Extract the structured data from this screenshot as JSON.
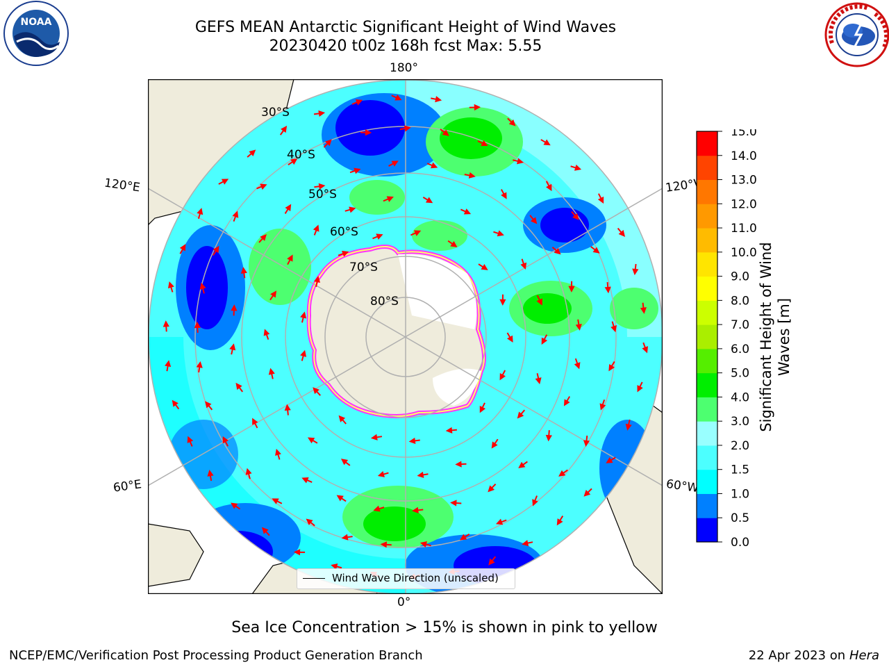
{
  "title": {
    "line1": "GEFS MEAN Antarctic Significant Height of Wind Waves",
    "line2": "20230420 t00z 168h fcst   Max: 5.55"
  },
  "logos": {
    "noaa_text": "NOAA",
    "nws_text": "NATIONAL WEATHER SERVICE"
  },
  "map": {
    "projection": "south-polar-stereographic",
    "longitude_labels": {
      "top": "180°",
      "bottom": "0°",
      "upper_left": "120°E",
      "upper_right": "120°W",
      "lower_left": "60°E",
      "lower_right": "60°W"
    },
    "latitude_labels": [
      "30°S",
      "40°S",
      "50°S",
      "60°S",
      "70°S",
      "80°S"
    ],
    "land_color": "#efecdc",
    "ocean_colors": [
      "#0000ff",
      "#0080ff",
      "#00ffff",
      "#4cffff",
      "#99ffff",
      "#4dff70",
      "#00ee00"
    ],
    "sea_ice_colors": [
      "#ff33ff",
      "#ffff66"
    ],
    "arrow_color": "#ff0000"
  },
  "legend": {
    "label": "Wind Wave Direction (unscaled)"
  },
  "colorbar": {
    "label": "Significant Height of Wind Waves [m]",
    "ticks": [
      "0.0",
      "0.5",
      "1.0",
      "1.5",
      "2.0",
      "3.0",
      "4.0",
      "5.0",
      "6.0",
      "7.0",
      "8.0",
      "9.0",
      "10.0",
      "11.0",
      "12.0",
      "13.0",
      "14.0",
      "15.0"
    ],
    "colors": [
      "#0000ff",
      "#0080ff",
      "#00ffff",
      "#4cffff",
      "#99ffff",
      "#4dff70",
      "#00ee00",
      "#55ee00",
      "#aaee00",
      "#ccff00",
      "#ffff00",
      "#ffe500",
      "#ffbb00",
      "#ff9900",
      "#ff7700",
      "#ff4400",
      "#ff0000"
    ]
  },
  "caption": "Sea Ice Concentration > 15% is shown in pink to yellow",
  "footer": {
    "left": "NCEP/EMC/Verification Post Processing Product Generation Branch",
    "right_prefix": "22 Apr 2023 on ",
    "right_host": "Hera"
  }
}
